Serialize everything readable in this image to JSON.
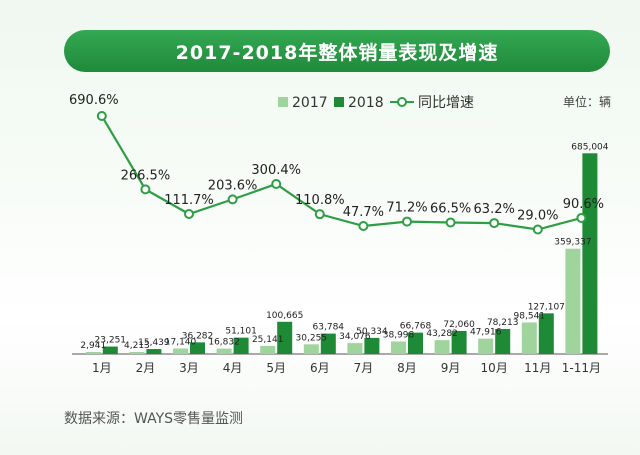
{
  "title": "2017-2018年整体销量表现及增速",
  "unit": "单位：辆",
  "source": "数据来源：WAYS零售量监测",
  "colors": {
    "bar_2017": "#9fd49c",
    "bar_2018": "#1e8a36",
    "line": "#2e9e45",
    "axis": "#555555"
  },
  "legend": {
    "series_2017": "2017",
    "series_2018": "2018",
    "growth": "同比增速"
  },
  "chart_data": {
    "type": "bar",
    "categories": [
      "1月",
      "2月",
      "3月",
      "4月",
      "5月",
      "6月",
      "7月",
      "8月",
      "9月",
      "10月",
      "11月",
      "1-11月"
    ],
    "series": [
      {
        "name": "2017",
        "values": [
          2941,
          4213,
          17140,
          16832,
          25141,
          30255,
          34076,
          38998,
          43282,
          47916,
          98541,
          359337
        ]
      },
      {
        "name": "2018",
        "values": [
          23251,
          15439,
          36282,
          51101,
          100665,
          63784,
          50334,
          66768,
          72060,
          78213,
          127107,
          685004
        ]
      },
      {
        "name": "同比增速",
        "type": "line",
        "values": [
          690.6,
          266.5,
          111.7,
          203.6,
          300.4,
          110.8,
          47.7,
          71.2,
          66.5,
          63.2,
          29.0,
          90.6
        ]
      }
    ],
    "bar_labels_2017": [
      "2,941",
      "4,213",
      "17,140",
      "16,832",
      "25,141",
      "30,255",
      "34,076",
      "38,998",
      "43,282",
      "47,916",
      "98,541",
      "359,337"
    ],
    "bar_labels_2018": [
      "23,251",
      "15,439",
      "36,282",
      "51,101",
      "100,665",
      "63,784",
      "50,334",
      "66,768",
      "72,060",
      "78,213",
      "127,107",
      "685,004"
    ],
    "growth_labels": [
      "690.6%",
      "266.5%",
      "111.7%",
      "203.6%",
      "300.4%",
      "110.8%",
      "47.7%",
      "71.2%",
      "66.5%",
      "63.2%",
      "29.0%",
      "90.6%"
    ]
  }
}
